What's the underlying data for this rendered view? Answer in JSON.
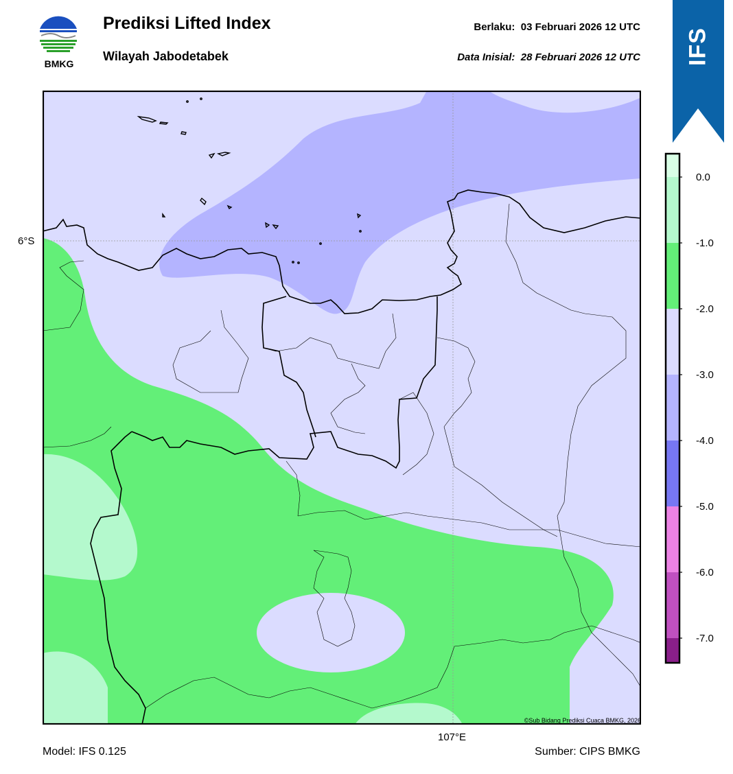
{
  "header": {
    "title": "Prediksi Lifted Index",
    "region": "Wilayah Jabodetabek",
    "valid_label": "Berlaku:",
    "valid_time": "03 Februari 2026 12 UTC",
    "init_label": "Data Inisial:",
    "init_time": "28 Februari 2026 12 UTC",
    "logo_text": "BMKG"
  },
  "map": {
    "lat_label": "6°S",
    "lon_label": "107°E",
    "copyright": "©Sub Bidang Prediksi Cuaca BMKG, 2026"
  },
  "colorbar": {
    "badge": "IFS",
    "ticks": [
      "0.0",
      "-1.0",
      "-2.0",
      "-3.0",
      "-4.0",
      "-5.0",
      "-6.0",
      "-7.0"
    ],
    "colors": {
      "above_0": "#d9ffe6",
      "0_to_-1": "#b4f9cd",
      "-1_to_-2": "#63ef78",
      "-2_to_-3": "#dbdcff",
      "-3_to_-4": "#b4b4ff",
      "-4_to_-5": "#7777f3",
      "-5_to_-6": "#ec82e4",
      "-6_to_-7": "#c050c0",
      "below_-7": "#8a1f8a"
    }
  },
  "footer": {
    "model": "Model: IFS 0.125",
    "source": "Sumber: CIPS BMKG"
  }
}
